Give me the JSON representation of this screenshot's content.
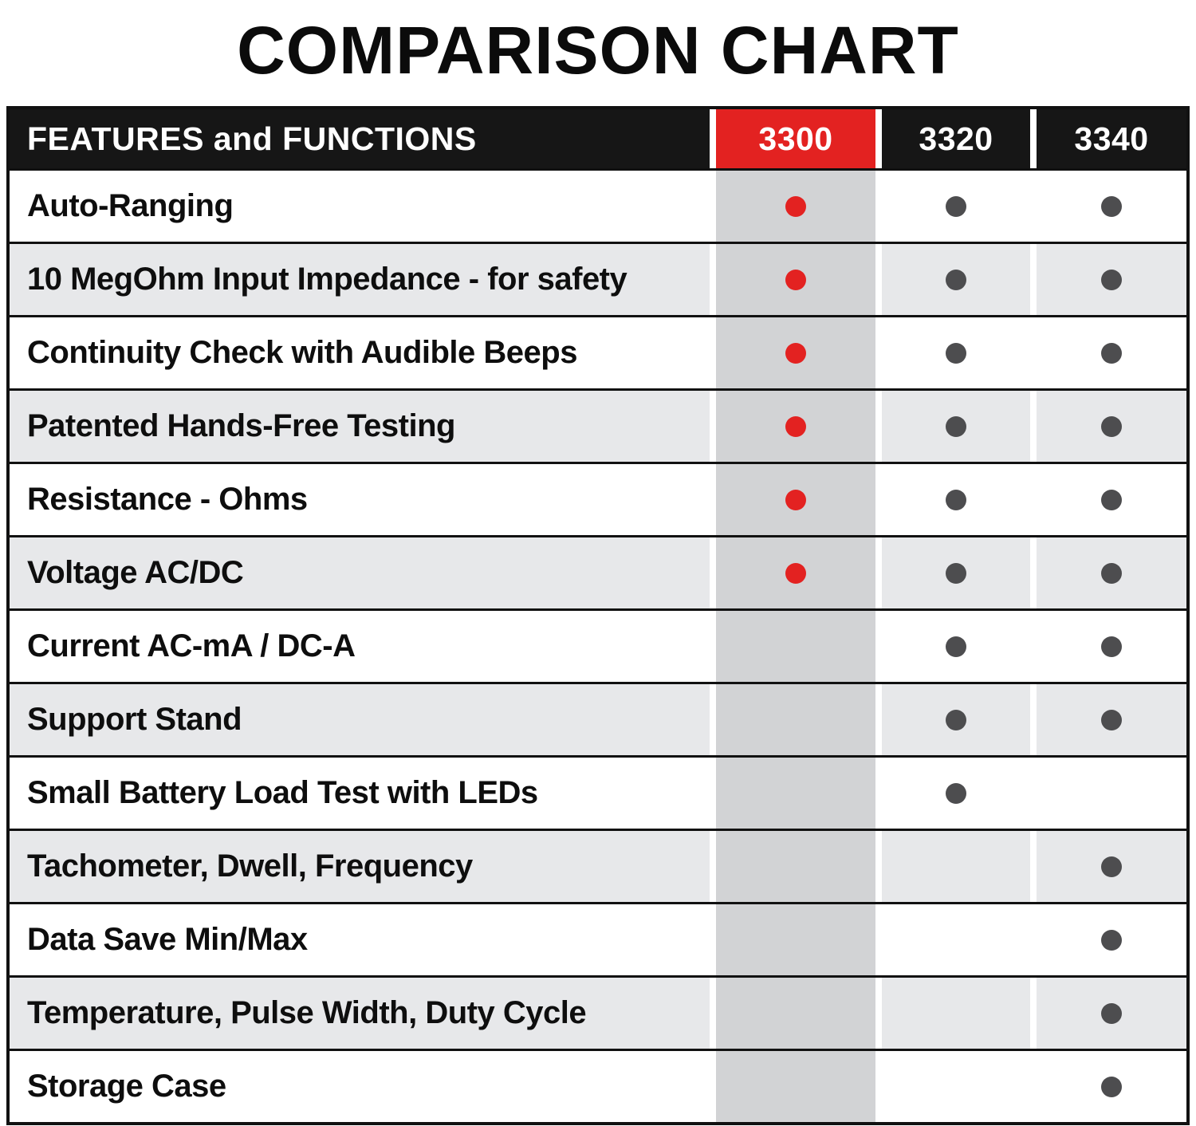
{
  "title": "COMPARISON CHART",
  "colors": {
    "accent_red": "#e32221",
    "header_black": "#161616",
    "highlight_column_gray": "#d2d3d5",
    "alt_row_gray": "#e7e8ea",
    "dot_gray": "#4d4d4f",
    "dot_red": "#e32221",
    "border_black": "#111111"
  },
  "chart_data": {
    "type": "table",
    "title": "COMPARISON CHART",
    "feature_column_header": "FEATURES and FUNCTIONS",
    "models": [
      "3300",
      "3320",
      "3340"
    ],
    "highlighted_model": "3300",
    "features": [
      "Auto-Ranging",
      "10 MegOhm Input Impedance - for safety",
      "Continuity Check with Audible Beeps",
      "Patented Hands-Free Testing",
      "Resistance - Ohms",
      "Voltage AC/DC",
      "Current AC-mA / DC-A",
      "Support Stand",
      "Small Battery Load Test with LEDs",
      "Tachometer, Dwell, Frequency",
      "Data Save Min/Max",
      "Temperature, Pulse Width, Duty Cycle",
      "Storage Case"
    ],
    "matrix": [
      [
        1,
        1,
        1
      ],
      [
        1,
        1,
        1
      ],
      [
        1,
        1,
        1
      ],
      [
        1,
        1,
        1
      ],
      [
        1,
        1,
        1
      ],
      [
        1,
        1,
        1
      ],
      [
        0,
        1,
        1
      ],
      [
        0,
        1,
        1
      ],
      [
        0,
        1,
        0
      ],
      [
        0,
        0,
        1
      ],
      [
        0,
        0,
        1
      ],
      [
        0,
        0,
        1
      ],
      [
        0,
        0,
        1
      ]
    ]
  }
}
